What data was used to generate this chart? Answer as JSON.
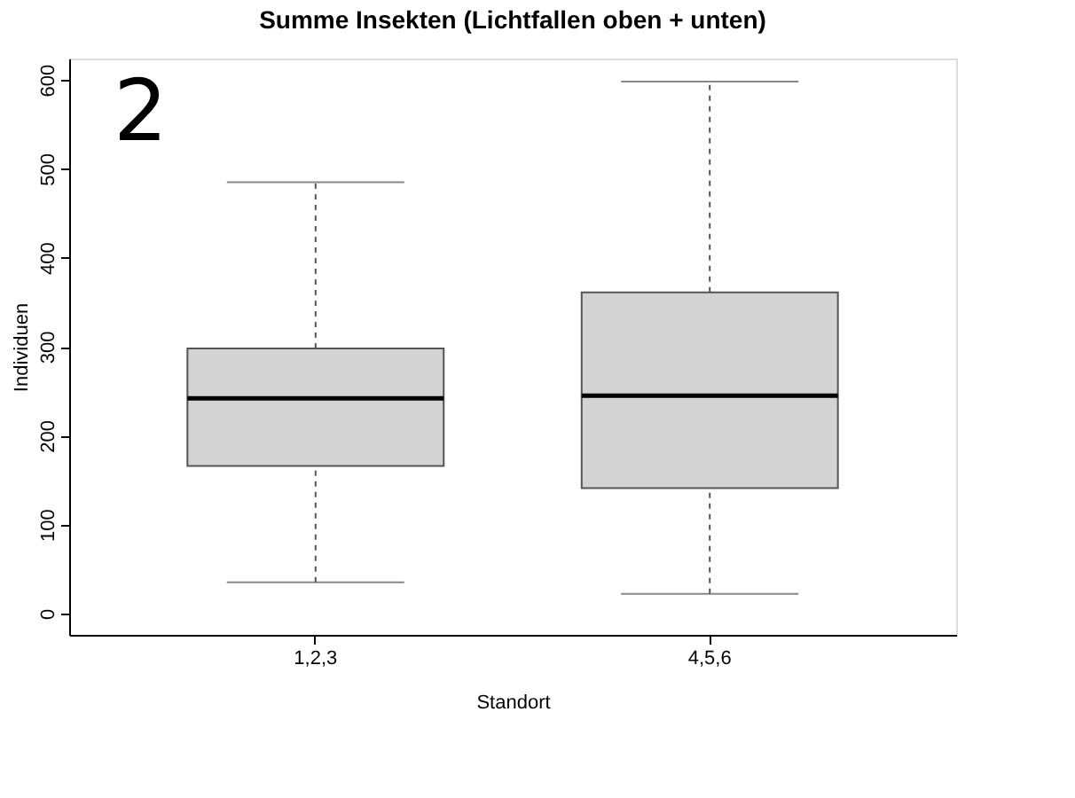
{
  "chart_data": {
    "type": "box",
    "title": "Summe Insekten (Lichtfallen oben + unten)",
    "xlabel": "Standort",
    "ylabel": "Individuen",
    "categories": [
      "1,2,3",
      "4,5,6"
    ],
    "series": [
      {
        "color": "#d3d3d3",
        "boxes": [
          {
            "low": 35,
            "q1": 166,
            "median": 242,
            "q3": 298,
            "high": 485
          },
          {
            "low": 22,
            "q1": 141,
            "median": 245,
            "q3": 361,
            "high": 598
          }
        ]
      }
    ],
    "ylim": [
      -24,
      624
    ],
    "yticks": [
      0,
      100,
      200,
      300,
      400,
      500,
      600
    ],
    "annotations": [
      "2"
    ]
  }
}
